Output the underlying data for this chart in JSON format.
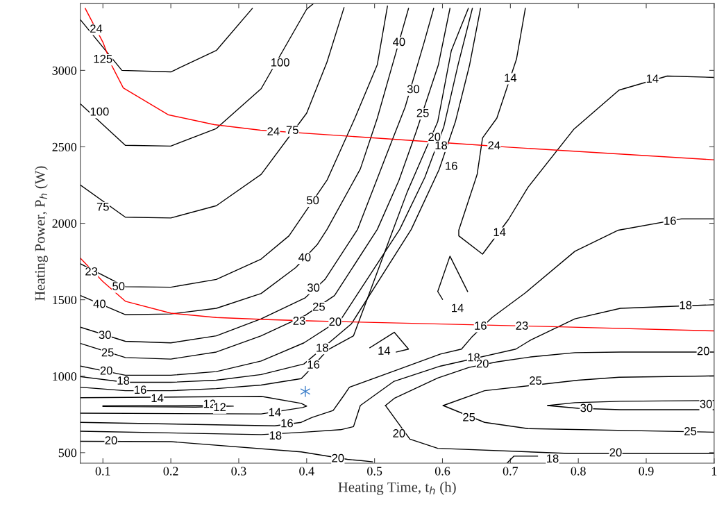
{
  "chart_data": {
    "type": "line",
    "xlabel": "Heating Time, t$_{h}$ (h)",
    "ylabel": "Heating Power, P$_{h}$ (W)",
    "xlim": [
      0.0667,
      1
    ],
    "ylim": [
      431,
      3437
    ],
    "xticks": [
      0.1,
      0.2,
      0.3,
      0.4,
      0.5,
      0.6,
      0.7,
      0.8,
      0.9,
      1
    ],
    "yticks": [
      500,
      1000,
      1500,
      2000,
      2500,
      3000
    ],
    "grid": false,
    "legend": false,
    "series": [
      {
        "type": "line",
        "color": "#000000",
        "x": [
          0.067,
          0.128,
          0.2,
          0.267,
          0.32
        ],
        "values": [
          3330,
          3000,
          2990,
          3130,
          3405
        ]
      },
      {
        "type": "line",
        "color": "#000000",
        "x": [
          0.067,
          0.133,
          0.2,
          0.267,
          0.333,
          0.4,
          0.41
        ],
        "values": [
          2780,
          2510,
          2505,
          2620,
          2880,
          3400,
          3437
        ]
      },
      {
        "type": "line",
        "color": "#000000",
        "x": [
          0.067,
          0.133,
          0.2,
          0.267,
          0.333,
          0.4,
          0.43,
          0.455
        ],
        "values": [
          2250,
          2040,
          2035,
          2115,
          2320,
          2720,
          3055,
          3410
        ]
      },
      {
        "type": "line",
        "color": "#000000",
        "x": [
          0.067,
          0.133,
          0.2,
          0.267,
          0.333,
          0.374,
          0.43,
          0.471,
          0.504,
          0.519
        ],
        "values": [
          1735,
          1585,
          1582,
          1633,
          1766,
          1918,
          2282,
          2687,
          3037,
          3420
        ]
      },
      {
        "type": "line",
        "color": "#000000",
        "x": [
          0.067,
          0.133,
          0.2,
          0.267,
          0.333,
          0.384,
          0.416,
          0.43,
          0.479,
          0.504,
          0.524,
          0.55
        ],
        "values": [
          1527,
          1402,
          1407,
          1444,
          1541,
          1711,
          1863,
          1960,
          2355,
          2687,
          3000,
          3405
        ]
      },
      {
        "type": "line",
        "color": "#000000",
        "x": [
          0.067,
          0.133,
          0.2,
          0.267,
          0.333,
          0.398,
          0.427,
          0.475,
          0.516,
          0.545,
          0.573,
          0.587
        ],
        "values": [
          1320,
          1228,
          1218,
          1264,
          1375,
          1513,
          1633,
          1960,
          2430,
          2760,
          3184,
          3405
        ]
      },
      {
        "type": "line",
        "color": "#000000",
        "x": [
          0.067,
          0.133,
          0.2,
          0.267,
          0.333,
          0.398,
          0.441,
          0.504,
          0.536,
          0.561,
          0.594,
          0.611
        ],
        "values": [
          1214,
          1122,
          1112,
          1158,
          1264,
          1398,
          1527,
          1960,
          2282,
          2595,
          3037,
          3405
        ]
      },
      {
        "type": "line",
        "color": "#000000",
        "x": [
          0.067,
          0.133,
          0.2,
          0.267,
          0.333,
          0.396,
          0.451,
          0.537,
          0.574,
          0.602,
          0.623,
          0.644
        ],
        "values": [
          1066,
          1006,
          1006,
          1030,
          1099,
          1218,
          1375,
          1960,
          2300,
          2632,
          3037,
          3405
        ]
      },
      {
        "type": "line",
        "color": "#000000",
        "x": [
          0.067,
          0.133,
          0.2,
          0.267,
          0.333,
          0.396,
          0.466,
          0.554,
          0.595,
          0.619,
          0.64,
          0.656
        ],
        "values": [
          997,
          960,
          960,
          974,
          1011,
          1080,
          1343,
          1960,
          2351,
          2664,
          3037,
          3405
        ]
      },
      {
        "type": "line",
        "color": "#000000",
        "x": [
          0.067,
          0.133,
          0.2,
          0.267,
          0.333,
          0.392,
          0.4,
          0.431,
          0.469,
          0.527,
          0.548,
          0.593,
          0.613,
          0.638
        ],
        "values": [
          928,
          905,
          905,
          919,
          942,
          984,
          1020,
          1172,
          1264,
          1955,
          2204,
          2664,
          3129,
          3405
        ]
      },
      {
        "type": "line",
        "color": "#000000",
        "x": [
          0.722,
          0.709,
          0.68,
          0.659,
          0.651,
          0.624,
          0.624,
          0.659,
          0.697,
          0.726,
          0.793,
          0.86,
          0.931,
          1.0
        ],
        "values": [
          3405,
          3074,
          2687,
          2558,
          2319,
          1955,
          1918,
          1798,
          2024,
          2236,
          2613,
          2871,
          2963,
          2954
        ]
      },
      {
        "type": "line",
        "color": "#000000",
        "x": [
          0.6,
          0.593,
          0.611,
          0.637
        ],
        "values": [
          1503,
          1554,
          1785,
          1554
        ]
      },
      {
        "type": "line",
        "color": "#000000",
        "x": [
          0.493,
          0.529,
          0.55,
          0.532
        ],
        "values": [
          1186,
          1287,
          1177,
          1158
        ]
      },
      {
        "type": "line",
        "color": "#000000",
        "x": [
          0.067,
          0.333,
          0.392,
          0.4,
          0.394,
          0.333,
          0.067
        ],
        "values": [
          859,
          868,
          822,
          804,
          795,
          753,
          758
        ]
      },
      {
        "type": "line",
        "color": "#000000",
        "x": [
          0.1,
          0.236,
          0.292,
          0.236,
          0.1
        ],
        "values": [
          806,
          808,
          804,
          798,
          802
        ]
      },
      {
        "type": "line",
        "color": "#000000",
        "x": [
          0.067,
          0.353,
          0.392,
          0.408,
          0.439,
          0.456,
          0.463,
          0.532,
          0.597,
          0.628,
          0.643,
          0.673,
          0.722,
          0.795,
          0.859,
          0.952,
          1.0
        ],
        "values": [
          698,
          675,
          698,
          730,
          776,
          882,
          928,
          1039,
          1145,
          1177,
          1255,
          1384,
          1545,
          1817,
          1955,
          2029,
          2029
        ]
      },
      {
        "type": "line",
        "color": "#000000",
        "x": [
          0.067,
          0.333,
          0.4,
          0.45,
          0.469,
          0.479,
          0.528,
          0.597,
          0.708,
          0.73,
          0.795,
          0.862,
          1.0
        ],
        "values": [
          640,
          618,
          635,
          650,
          670,
          808,
          965,
          1066,
          1177,
          1237,
          1375,
          1444,
          1467
        ]
      },
      {
        "type": "line",
        "color": "#000000",
        "x": [
          0.695,
          0.705,
          0.74
        ],
        "values": [
          431,
          477,
          477
        ]
      },
      {
        "type": "line",
        "color": "#000000",
        "x": [
          0.067,
          0.2,
          0.392,
          0.46,
          0.48,
          0.497
        ],
        "values": [
          574,
          572,
          505,
          456,
          448,
          440
        ]
      },
      {
        "type": "line",
        "color": "#000000",
        "x": [
          0.516,
          0.552,
          0.593,
          0.786,
          1.0
        ],
        "values": [
          808,
          588,
          528,
          495,
          495
        ]
      },
      {
        "type": "line",
        "color": "#000000",
        "x": [
          0.516,
          0.529,
          0.593,
          0.639,
          0.681,
          0.73,
          0.795,
          0.862,
          1.0
        ],
        "values": [
          808,
          855,
          988,
          1057,
          1094,
          1126,
          1154,
          1158,
          1158
        ]
      },
      {
        "type": "line",
        "color": "#000000",
        "x": [
          0.601,
          0.662,
          0.8,
          0.86,
          1.0
        ],
        "values": [
          808,
          905,
          974,
          993,
          1002
        ]
      },
      {
        "type": "line",
        "color": "#000000",
        "x": [
          0.601,
          0.662,
          0.726,
          1.0
        ],
        "values": [
          808,
          698,
          657,
          634
        ]
      },
      {
        "type": "line",
        "color": "#000000",
        "x": [
          0.755,
          0.795,
          0.862,
          1.0
        ],
        "values": [
          808,
          827,
          836,
          841
        ]
      },
      {
        "type": "line",
        "color": "#000000",
        "x": [
          0.755,
          0.8,
          0.862,
          1.0
        ],
        "values": [
          808,
          790,
          781,
          781
        ]
      },
      {
        "type": "line",
        "color": "#ff0000",
        "x": [
          0.074,
          0.1,
          0.113,
          0.13,
          0.196,
          0.264,
          0.332,
          0.651,
          0.696,
          1.0
        ],
        "values": [
          3405,
          3184,
          3032,
          2885,
          2710,
          2645,
          2609,
          2512,
          2498,
          2415
        ]
      },
      {
        "type": "line",
        "color": "#ff0000",
        "x": [
          0.067,
          0.1,
          0.133,
          0.2,
          0.267,
          0.343,
          0.41,
          0.762,
          1.0
        ],
        "values": [
          1771,
          1619,
          1490,
          1412,
          1384,
          1370,
          1361,
          1324,
          1296
        ]
      },
      {
        "type": "scatter",
        "color": "#3a7dc9",
        "marker": "cross",
        "x": [
          0.398
        ],
        "values": [
          900
        ]
      }
    ],
    "annotations": [
      {
        "text": "125",
        "x": 0.1,
        "y": 3069
      },
      {
        "text": "100",
        "x": 0.095,
        "y": 2724
      },
      {
        "text": "100",
        "x": 0.361,
        "y": 3046
      },
      {
        "text": "75",
        "x": 0.1,
        "y": 2102
      },
      {
        "text": "75",
        "x": 0.379,
        "y": 2604
      },
      {
        "text": "50",
        "x": 0.123,
        "y": 1582
      },
      {
        "text": "50",
        "x": 0.409,
        "y": 2144
      },
      {
        "text": "40",
        "x": 0.095,
        "y": 1467
      },
      {
        "text": "40",
        "x": 0.397,
        "y": 1771
      },
      {
        "text": "40",
        "x": 0.536,
        "y": 3180
      },
      {
        "text": "30",
        "x": 0.103,
        "y": 1264
      },
      {
        "text": "30",
        "x": 0.41,
        "y": 1573
      },
      {
        "text": "30",
        "x": 0.557,
        "y": 2871
      },
      {
        "text": "25",
        "x": 0.107,
        "y": 1149
      },
      {
        "text": "25",
        "x": 0.418,
        "y": 1448
      },
      {
        "text": "25",
        "x": 0.571,
        "y": 2715
      },
      {
        "text": "20",
        "x": 0.105,
        "y": 1030
      },
      {
        "text": "20",
        "x": 0.442,
        "y": 1350
      },
      {
        "text": "20",
        "x": 0.588,
        "y": 2558
      },
      {
        "text": "18",
        "x": 0.13,
        "y": 965
      },
      {
        "text": "18",
        "x": 0.423,
        "y": 1180
      },
      {
        "text": "18",
        "x": 0.598,
        "y": 2503
      },
      {
        "text": "16",
        "x": 0.155,
        "y": 905
      },
      {
        "text": "16",
        "x": 0.41,
        "y": 1070
      },
      {
        "text": "16",
        "x": 0.613,
        "y": 2369
      },
      {
        "text": "14",
        "x": 0.7,
        "y": 2945
      },
      {
        "text": "14",
        "x": 0.684,
        "y": 1936
      },
      {
        "text": "14",
        "x": 0.909,
        "y": 2940
      },
      {
        "text": "14",
        "x": 0.622,
        "y": 1440
      },
      {
        "text": "14",
        "x": 0.514,
        "y": 1160
      },
      {
        "text": "14",
        "x": 0.18,
        "y": 850
      },
      {
        "text": "14",
        "x": 0.353,
        "y": 758
      },
      {
        "text": "12",
        "x": 0.257,
        "y": 813
      },
      {
        "text": "12",
        "x": 0.272,
        "y": 791
      },
      {
        "text": "16",
        "x": 0.371,
        "y": 686
      },
      {
        "text": "16",
        "x": 0.656,
        "y": 1324
      },
      {
        "text": "16",
        "x": 0.935,
        "y": 2010
      },
      {
        "text": "18",
        "x": 0.354,
        "y": 606
      },
      {
        "text": "18",
        "x": 0.646,
        "y": 1117
      },
      {
        "text": "18",
        "x": 0.958,
        "y": 1458
      },
      {
        "text": "18",
        "x": 0.762,
        "y": 455
      },
      {
        "text": "20",
        "x": 0.112,
        "y": 574
      },
      {
        "text": "20",
        "x": 0.446,
        "y": 458
      },
      {
        "text": "20",
        "x": 0.536,
        "y": 620
      },
      {
        "text": "20",
        "x": 0.855,
        "y": 495
      },
      {
        "text": "20",
        "x": 0.659,
        "y": 1076
      },
      {
        "text": "20",
        "x": 0.984,
        "y": 1158
      },
      {
        "text": "25",
        "x": 0.737,
        "y": 965
      },
      {
        "text": "25",
        "x": 0.639,
        "y": 726
      },
      {
        "text": "25",
        "x": 0.965,
        "y": 634
      },
      {
        "text": "30",
        "x": 0.812,
        "y": 786
      },
      {
        "text": "30",
        "x": 0.988,
        "y": 812
      },
      {
        "text": "24",
        "x": 0.09,
        "y": 3267
      },
      {
        "text": "24",
        "x": 0.351,
        "y": 2595
      },
      {
        "text": "24",
        "x": 0.676,
        "y": 2503
      },
      {
        "text": "23",
        "x": 0.083,
        "y": 1679
      },
      {
        "text": "23",
        "x": 0.389,
        "y": 1356
      },
      {
        "text": "23",
        "x": 0.717,
        "y": 1324
      }
    ]
  }
}
